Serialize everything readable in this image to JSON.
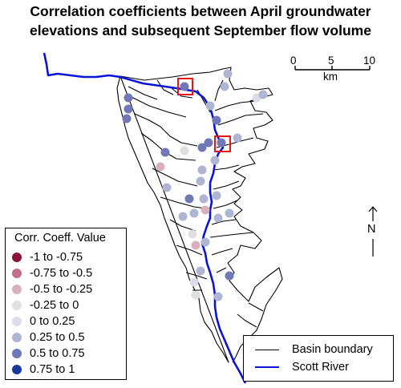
{
  "title": {
    "line1": "Correlation coefficients between April groundwater",
    "line2": "elevations and subsequent September flow volume"
  },
  "scale_bar": {
    "ticks": [
      "0",
      "5",
      "10"
    ],
    "unit": "km"
  },
  "north_arrow": {
    "label": "N"
  },
  "legend": {
    "title": "Corr. Coeff. Value",
    "items": [
      {
        "label": "-1 to -0.75",
        "color": "#8b1538"
      },
      {
        "label": "-0.75 to -0.5",
        "color": "#c07088"
      },
      {
        "label": "-0.5 to -0.25",
        "color": "#d9b1bd"
      },
      {
        "label": "-0.25 to 0",
        "color": "#e2dfe2"
      },
      {
        "label": "0 to 0.25",
        "color": "#dcdde8"
      },
      {
        "label": "0.25 to 0.5",
        "color": "#b0b5d4"
      },
      {
        "label": "0.5 to 0.75",
        "color": "#7178b8"
      },
      {
        "label": "0.75 to 1",
        "color": "#1a3a9a"
      }
    ]
  },
  "map_key": {
    "basin_label": "Basin boundary",
    "basin_color": "#000000",
    "river_label": "Scott River",
    "river_color": "#0a14d8"
  },
  "highlight_color": "#e8141a"
}
